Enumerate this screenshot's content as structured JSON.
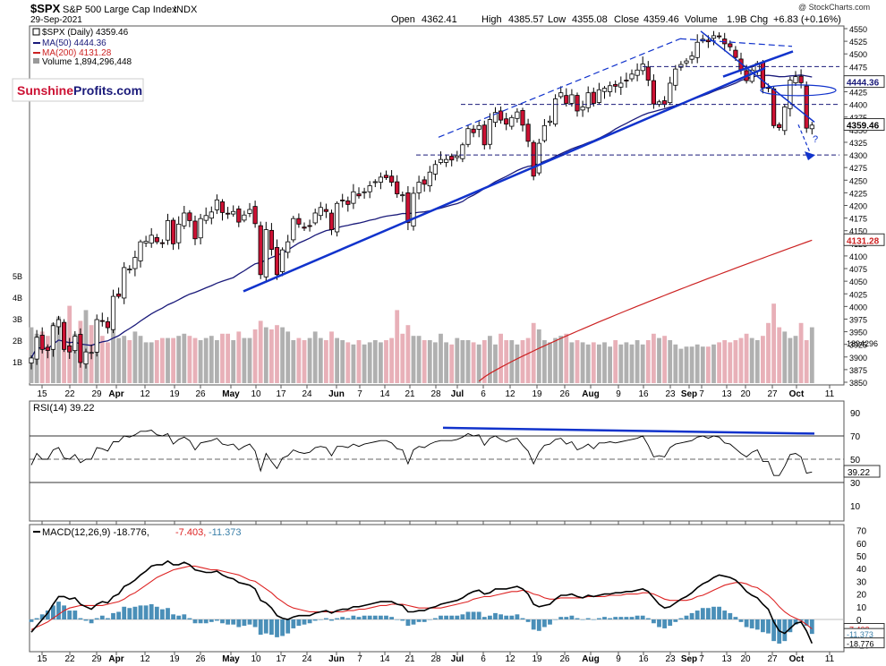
{
  "header": {
    "symbol": "$SPX",
    "name": "S&P 500 Large Cap Index",
    "exchange": "INDX",
    "date": "29-Sep-2021",
    "watermark": "@ StockCharts.com",
    "open_label": "Open",
    "open": "4362.41",
    "high_label": "High",
    "high": "4385.57",
    "low_label": "Low",
    "low": "4355.08",
    "close_label": "Close",
    "close": "4359.46",
    "volume_label": "Volume",
    "volume": "1.9B",
    "chg_label": "Chg",
    "chg": "+6.83 (+0.16%)"
  },
  "legend": {
    "price": "$SPX (Daily) 4359.46",
    "ma50": "MA(50) 4444.36",
    "ma200": "MA(200) 4131.28",
    "volume": "Volume 1,894,296,448"
  },
  "logo": {
    "part1": "Sunshine",
    "part2": "Profits.com"
  },
  "colors": {
    "up": "#ffffff",
    "down": "#cc1133",
    "ma50": "#1a1a7a",
    "ma200": "#cc2222",
    "trend": "#1133cc",
    "vol_up": "#b0b0b0",
    "vol_down": "#e8b0b8",
    "macd_line": "#000000",
    "macd_signal": "#dd2222",
    "hist": "#4a8fb8"
  },
  "chart_data": [
    {
      "type": "candlestick",
      "title": "$SPX S&P 500 Large Cap Index",
      "ylim": [
        3850,
        4550
      ],
      "y_ticks": [
        3850,
        3875,
        3900,
        3925,
        3950,
        3975,
        4000,
        4025,
        4050,
        4075,
        4100,
        4125,
        4150,
        4175,
        4200,
        4225,
        4250,
        4275,
        4300,
        4325,
        4350,
        4375,
        4400,
        4425,
        4450,
        4475,
        4500,
        4525,
        4550
      ],
      "x_ticks": [
        "15",
        "22",
        "29",
        "Apr",
        "12",
        "19",
        "26",
        "May",
        "10",
        "17",
        "24",
        "Jun",
        "7",
        "14",
        "21",
        "28",
        "Jul",
        "6",
        "12",
        "19",
        "26",
        "Aug",
        "9",
        "16",
        "23",
        "Sep",
        "7",
        "13",
        "20",
        "27",
        "Oct",
        "11"
      ],
      "x_range": [
        "2021-03-10",
        "2021-10-15"
      ],
      "closes": [
        3898,
        3939,
        3915,
        3913,
        3962,
        3974,
        3915,
        3910,
        3941,
        3889,
        3910,
        3909,
        3974,
        3971,
        3958,
        4020,
        4020,
        4077,
        4074,
        4097,
        4128,
        4129,
        4141,
        4128,
        4125,
        4170,
        4124,
        4163,
        4185,
        4170,
        4134,
        4174,
        4180,
        4187,
        4211,
        4186,
        4183,
        4188,
        4167,
        4181,
        4192,
        4164,
        4063,
        4152,
        4113,
        4063,
        4112,
        4128,
        4174,
        4163,
        4155,
        4159,
        4185,
        4196,
        4188,
        4152,
        4204,
        4209,
        4202,
        4227,
        4219,
        4227,
        4239,
        4247,
        4256,
        4255,
        4246,
        4223,
        4221,
        4166,
        4224,
        4246,
        4242,
        4266,
        4281,
        4291,
        4291,
        4290,
        4298,
        4320,
        4352,
        4344,
        4358,
        4320,
        4370,
        4384,
        4369,
        4361,
        4374,
        4385,
        4359,
        4327,
        4258,
        4323,
        4358,
        4367,
        4411,
        4423,
        4402,
        4419,
        4387,
        4395,
        4423,
        4402,
        4429,
        4432,
        4437,
        4436,
        4442,
        4447,
        4460,
        4468,
        4480,
        4448,
        4401,
        4405,
        4400,
        4442,
        4470,
        4479,
        4486,
        4496,
        4523,
        4529,
        4524,
        4536,
        4535,
        4520,
        4514,
        4493,
        4469,
        4447,
        4468,
        4481,
        4433,
        4432,
        4358,
        4354,
        4395,
        4448,
        4455,
        4443,
        4353,
        4359
      ],
      "ma50_latest": 4444.36,
      "ma200_latest": 4131.28,
      "annotations": {
        "resistance_levels": [
          4475,
          4400,
          4300
        ],
        "arrow_target": 4300,
        "question_mark": "?",
        "price_badge": "4359.46",
        "ma50_badge": "4444.36",
        "ma200_badge": "4131.28"
      }
    },
    {
      "type": "bar",
      "title": "Volume",
      "ylim_billions": [
        0,
        5
      ],
      "y_ticks": [
        "1B",
        "2B",
        "3B",
        "4B",
        "5B"
      ],
      "latest": "1894296",
      "values_billions": [
        2.6,
        2.3,
        2.4,
        2.2,
        2.8,
        3.1,
        2.5,
        3.6,
        2.3,
        2.9,
        3.4,
        2.7,
        2.3,
        2.2,
        1.9,
        2.6,
        2.1,
        2.2,
        2.0,
        2.4,
        2.2,
        1.9,
        1.9,
        2.0,
        2.1,
        2.1,
        2.1,
        2.2,
        2.3,
        2.2,
        2.1,
        2.0,
        2.1,
        2.2,
        2.0,
        2.3,
        2.3,
        2.0,
        2.4,
        2.1,
        2.1,
        2.5,
        2.9,
        2.6,
        2.5,
        2.7,
        2.6,
        2.4,
        2.0,
        2.1,
        2.0,
        2.1,
        2.4,
        2.1,
        2.0,
        2.4,
        2.1,
        2.0,
        1.9,
        1.8,
        2.0,
        1.8,
        1.9,
        2.0,
        1.9,
        2.0,
        2.1,
        3.4,
        2.3,
        2.7,
        2.2,
        2.2,
        2.0,
        2.0,
        1.9,
        2.3,
        1.9,
        1.8,
        2.1,
        2.0,
        2.0,
        1.9,
        1.8,
        2.0,
        2.2,
        1.8,
        2.3,
        2.0,
        2.0,
        1.8,
        2.0,
        2.1,
        2.8,
        2.5,
        2.0,
        1.9,
        2.1,
        2.2,
        2.3,
        1.9,
        2.0,
        1.9,
        1.8,
        1.9,
        1.8,
        1.9,
        1.7,
        2.0,
        1.8,
        1.9,
        1.8,
        2.0,
        1.8,
        2.0,
        2.3,
        2.1,
        2.2,
        2.0,
        1.8,
        1.6,
        1.7,
        1.7,
        1.8,
        1.7,
        1.7,
        1.8,
        1.9,
        2.0,
        1.9,
        2.0,
        2.1,
        2.3,
        2.1,
        2.0,
        2.2,
        2.8,
        3.7,
        2.6,
        2.4,
        2.1,
        2.2,
        2.8,
        2.0,
        2.6
      ]
    },
    {
      "type": "line",
      "title": "RSI(14)",
      "label": "RSI(14) 39.22",
      "ylim": [
        0,
        100
      ],
      "y_ticks": [
        10,
        30,
        50,
        70,
        90
      ],
      "latest": "39.22",
      "values": [
        45,
        55,
        50,
        50,
        58,
        60,
        51,
        50,
        54,
        47,
        50,
        50,
        60,
        59,
        57,
        65,
        65,
        70,
        69,
        71,
        74,
        74,
        75,
        71,
        70,
        72,
        63,
        67,
        69,
        66,
        58,
        64,
        65,
        66,
        68,
        63,
        62,
        63,
        58,
        61,
        63,
        57,
        40,
        55,
        48,
        42,
        51,
        53,
        58,
        56,
        55,
        56,
        60,
        61,
        60,
        53,
        61,
        61,
        60,
        63,
        61,
        63,
        64,
        65,
        66,
        66,
        64,
        59,
        58,
        46,
        58,
        61,
        60,
        63,
        65,
        66,
        66,
        66,
        67,
        69,
        72,
        70,
        71,
        62,
        68,
        70,
        67,
        65,
        67,
        68,
        62,
        57,
        46,
        56,
        62,
        63,
        67,
        68,
        63,
        65,
        58,
        60,
        63,
        59,
        64,
        64,
        65,
        64,
        65,
        66,
        67,
        68,
        70,
        62,
        52,
        53,
        52,
        60,
        63,
        64,
        65,
        66,
        69,
        70,
        68,
        70,
        69,
        64,
        63,
        59,
        55,
        52,
        56,
        58,
        48,
        48,
        36,
        36,
        44,
        54,
        55,
        52,
        38,
        39
      ]
    },
    {
      "type": "line",
      "title": "MACD(12,26,9)",
      "label_main": "MACD(12,26,9) -18.776,",
      "label_signal": "-7.403,",
      "label_hist": "-11.373",
      "ylim": [
        -30,
        70
      ],
      "y_ticks": [
        -20,
        -10,
        0,
        10,
        20,
        30,
        40,
        50,
        60,
        70
      ],
      "latest": {
        "macd": "-18.776",
        "signal": "-7.403",
        "hist": "-11.373"
      },
      "macd": [
        -10,
        -5,
        0,
        5,
        12,
        18,
        18,
        16,
        17,
        12,
        10,
        8,
        12,
        14,
        13,
        18,
        20,
        26,
        28,
        31,
        35,
        38,
        42,
        43,
        43,
        46,
        43,
        43,
        45,
        43,
        39,
        38,
        37,
        37,
        38,
        35,
        33,
        32,
        29,
        28,
        27,
        24,
        15,
        13,
        9,
        3,
        1,
        0,
        2,
        3,
        3,
        3,
        5,
        6,
        7,
        5,
        7,
        8,
        8,
        10,
        10,
        11,
        12,
        13,
        14,
        14,
        14,
        12,
        11,
        6,
        6,
        7,
        7,
        9,
        10,
        12,
        13,
        14,
        15,
        17,
        20,
        22,
        23,
        20,
        21,
        24,
        24,
        24,
        25,
        26,
        24,
        20,
        12,
        10,
        11,
        12,
        16,
        19,
        19,
        20,
        18,
        17,
        19,
        18,
        19,
        20,
        20,
        21,
        21,
        22,
        22,
        23,
        24,
        22,
        17,
        12,
        9,
        10,
        13,
        16,
        18,
        21,
        25,
        28,
        30,
        33,
        35,
        34,
        33,
        31,
        27,
        22,
        19,
        17,
        12,
        8,
        -2,
        -9,
        -11,
        -7,
        -3,
        -2,
        -9,
        -18.776
      ],
      "signal": [
        -8,
        -6,
        -4,
        -2,
        1,
        4,
        7,
        9,
        10,
        11,
        11,
        11,
        11,
        11,
        12,
        13,
        14,
        16,
        19,
        21,
        24,
        27,
        30,
        33,
        35,
        37,
        39,
        40,
        41,
        42,
        42,
        41,
        40,
        39,
        39,
        38,
        37,
        36,
        35,
        33,
        31,
        30,
        27,
        24,
        21,
        17,
        14,
        11,
        9,
        8,
        7,
        6,
        6,
        6,
        6,
        6,
        6,
        6,
        7,
        7,
        8,
        8,
        9,
        10,
        11,
        11,
        12,
        12,
        12,
        11,
        10,
        9,
        9,
        9,
        9,
        9,
        10,
        11,
        12,
        13,
        14,
        16,
        17,
        18,
        18,
        19,
        20,
        21,
        22,
        22,
        23,
        22,
        20,
        19,
        17,
        16,
        16,
        17,
        17,
        17,
        17,
        17,
        18,
        18,
        18,
        18,
        19,
        19,
        19,
        20,
        20,
        20,
        21,
        21,
        20,
        18,
        16,
        15,
        15,
        15,
        15,
        16,
        18,
        19,
        21,
        23,
        25,
        27,
        28,
        29,
        29,
        28,
        26,
        25,
        22,
        19,
        15,
        10,
        6,
        3,
        1,
        -1,
        -4,
        -7.403
      ]
    }
  ]
}
